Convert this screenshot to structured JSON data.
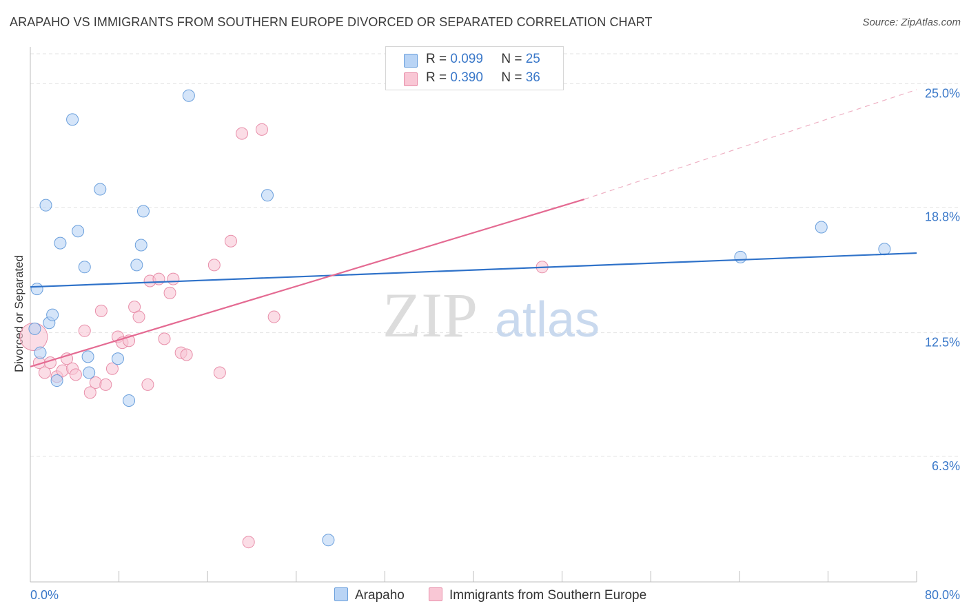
{
  "title": "ARAPAHO VS IMMIGRANTS FROM SOUTHERN EUROPE DIVORCED OR SEPARATED CORRELATION CHART",
  "source": "Source: ZipAtlas.com",
  "watermark": {
    "zip": "ZIP",
    "atlas": "atlas"
  },
  "legend": {
    "rows": [
      {
        "r_label": "R =",
        "r_value": "0.099",
        "n_label": "N =",
        "n_value": "25"
      },
      {
        "r_label": "R =",
        "r_value": "0.390",
        "n_label": "N =",
        "n_value": "36"
      }
    ]
  },
  "colors": {
    "blue_fill": "#b9d4f5",
    "blue_stroke": "#6a9fdc",
    "blue_line": "#2f72c9",
    "pink_fill": "#f9c7d5",
    "pink_stroke": "#e88ea9",
    "pink_line": "#e46a92",
    "tick_text": "#3a78c9",
    "grid": "#e3e3e3"
  },
  "chart_data": {
    "type": "scatter",
    "title": "ARAPAHO VS IMMIGRANTS FROM SOUTHERN EUROPE DIVORCED OR SEPARATED CORRELATION CHART",
    "xlabel": "",
    "ylabel": "Divorced or Separated",
    "xlim": [
      0,
      80
    ],
    "ylim": [
      0,
      26.5
    ],
    "x_tick_labels": [
      "0.0%",
      "80.0%"
    ],
    "y_ticks": [
      6.3,
      12.5,
      18.8,
      25.0
    ],
    "y_tick_labels": [
      "6.3%",
      "12.5%",
      "18.8%",
      "25.0%"
    ],
    "grid": true,
    "series": [
      {
        "name": "Arapaho",
        "r": 0.099,
        "n": 25,
        "trend": {
          "x0": 0,
          "y0": 14.8,
          "x1": 80,
          "y1": 16.5
        },
        "points": [
          [
            0.4,
            12.7
          ],
          [
            0.6,
            14.7
          ],
          [
            0.9,
            11.5
          ],
          [
            1.4,
            18.9
          ],
          [
            1.7,
            13.0
          ],
          [
            2.0,
            13.4
          ],
          [
            2.4,
            10.1
          ],
          [
            2.7,
            17.0
          ],
          [
            3.8,
            23.2
          ],
          [
            4.3,
            17.6
          ],
          [
            4.9,
            15.8
          ],
          [
            5.2,
            11.3
          ],
          [
            5.3,
            10.5
          ],
          [
            6.3,
            19.7
          ],
          [
            7.9,
            11.2
          ],
          [
            8.9,
            9.1
          ],
          [
            9.6,
            15.9
          ],
          [
            10.0,
            16.9
          ],
          [
            10.2,
            18.6
          ],
          [
            14.3,
            24.4
          ],
          [
            21.4,
            19.4
          ],
          [
            26.9,
            2.1
          ],
          [
            64.1,
            16.3
          ],
          [
            71.4,
            17.8
          ],
          [
            77.1,
            16.7
          ]
        ]
      },
      {
        "name": "Immigrants from Southern Europe",
        "r": 0.39,
        "n": 36,
        "trend": {
          "x0": 0,
          "y0": 10.8,
          "x1": 50,
          "y1": 19.2,
          "dash_x1": 80,
          "dash_y1": 24.7
        },
        "points": [
          [
            0.3,
            12.3
          ],
          [
            0.8,
            11.0
          ],
          [
            1.3,
            10.5
          ],
          [
            1.8,
            11.0
          ],
          [
            2.4,
            10.3
          ],
          [
            2.9,
            10.6
          ],
          [
            3.3,
            11.2
          ],
          [
            3.8,
            10.7
          ],
          [
            4.1,
            10.4
          ],
          [
            4.9,
            12.6
          ],
          [
            5.4,
            9.5
          ],
          [
            5.9,
            10.0
          ],
          [
            6.4,
            13.6
          ],
          [
            6.8,
            9.9
          ],
          [
            7.4,
            10.7
          ],
          [
            7.9,
            12.3
          ],
          [
            8.3,
            12.0
          ],
          [
            8.9,
            12.1
          ],
          [
            9.4,
            13.8
          ],
          [
            9.8,
            13.3
          ],
          [
            10.6,
            9.9
          ],
          [
            10.8,
            15.1
          ],
          [
            11.6,
            15.2
          ],
          [
            12.1,
            12.2
          ],
          [
            12.6,
            14.5
          ],
          [
            12.9,
            15.2
          ],
          [
            13.6,
            11.5
          ],
          [
            14.1,
            11.4
          ],
          [
            16.6,
            15.9
          ],
          [
            17.1,
            10.5
          ],
          [
            18.1,
            17.1
          ],
          [
            19.1,
            22.5
          ],
          [
            19.7,
            2.0
          ],
          [
            20.9,
            22.7
          ],
          [
            22.0,
            13.3
          ],
          [
            46.2,
            15.8
          ]
        ]
      }
    ]
  },
  "bottom_legend": {
    "series_a": "Arapaho",
    "series_b": "Immigrants from Southern Europe"
  }
}
